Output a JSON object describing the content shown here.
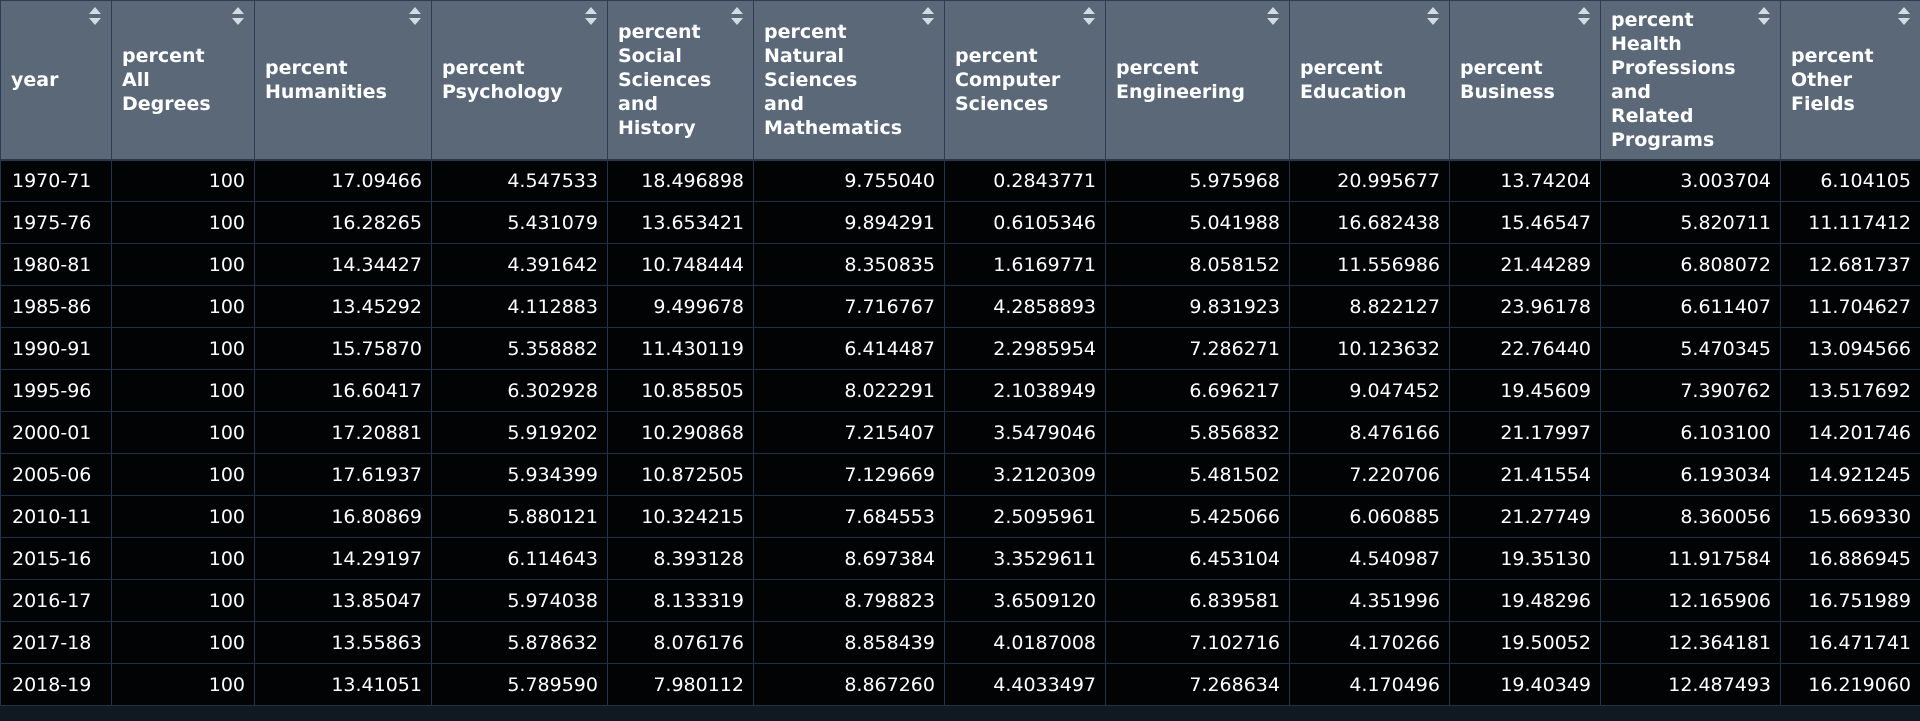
{
  "table": {
    "columns": [
      {
        "key": "year",
        "lines": [
          "year"
        ]
      },
      {
        "key": "all_degrees",
        "lines": [
          "percent",
          "All",
          "Degrees"
        ]
      },
      {
        "key": "humanities",
        "lines": [
          "percent",
          "Humanities"
        ]
      },
      {
        "key": "psychology",
        "lines": [
          "percent",
          "Psychology"
        ]
      },
      {
        "key": "social_sciences_history",
        "lines": [
          "percent",
          "Social",
          "Sciences",
          "and",
          "History"
        ]
      },
      {
        "key": "natural_sciences_math",
        "lines": [
          "percent",
          "Natural",
          "Sciences",
          "and",
          "Mathematics"
        ]
      },
      {
        "key": "computer_sciences",
        "lines": [
          "percent",
          "Computer",
          "Sciences"
        ]
      },
      {
        "key": "engineering",
        "lines": [
          "percent",
          "Engineering"
        ]
      },
      {
        "key": "education",
        "lines": [
          "percent",
          "Education"
        ]
      },
      {
        "key": "business",
        "lines": [
          "percent",
          "Business"
        ]
      },
      {
        "key": "health_professions",
        "lines": [
          "percent",
          "Health",
          "Professions",
          "and",
          "Related",
          "Programs"
        ]
      },
      {
        "key": "other_fields",
        "lines": [
          "percent",
          "Other",
          "Fields"
        ]
      }
    ],
    "rows": [
      [
        "1970-71",
        "100",
        "17.09466",
        "4.547533",
        "18.496898",
        "9.755040",
        "0.2843771",
        "5.975968",
        "20.995677",
        "13.74204",
        "3.003704",
        "6.104105"
      ],
      [
        "1975-76",
        "100",
        "16.28265",
        "5.431079",
        "13.653421",
        "9.894291",
        "0.6105346",
        "5.041988",
        "16.682438",
        "15.46547",
        "5.820711",
        "11.117412"
      ],
      [
        "1980-81",
        "100",
        "14.34427",
        "4.391642",
        "10.748444",
        "8.350835",
        "1.6169771",
        "8.058152",
        "11.556986",
        "21.44289",
        "6.808072",
        "12.681737"
      ],
      [
        "1985-86",
        "100",
        "13.45292",
        "4.112883",
        "9.499678",
        "7.716767",
        "4.2858893",
        "9.831923",
        "8.822127",
        "23.96178",
        "6.611407",
        "11.704627"
      ],
      [
        "1990-91",
        "100",
        "15.75870",
        "5.358882",
        "11.430119",
        "6.414487",
        "2.2985954",
        "7.286271",
        "10.123632",
        "22.76440",
        "5.470345",
        "13.094566"
      ],
      [
        "1995-96",
        "100",
        "16.60417",
        "6.302928",
        "10.858505",
        "8.022291",
        "2.1038949",
        "6.696217",
        "9.047452",
        "19.45609",
        "7.390762",
        "13.517692"
      ],
      [
        "2000-01",
        "100",
        "17.20881",
        "5.919202",
        "10.290868",
        "7.215407",
        "3.5479046",
        "5.856832",
        "8.476166",
        "21.17997",
        "6.103100",
        "14.201746"
      ],
      [
        "2005-06",
        "100",
        "17.61937",
        "5.934399",
        "10.872505",
        "7.129669",
        "3.2120309",
        "5.481502",
        "7.220706",
        "21.41554",
        "6.193034",
        "14.921245"
      ],
      [
        "2010-11",
        "100",
        "16.80869",
        "5.880121",
        "10.324215",
        "7.684553",
        "2.5095961",
        "5.425066",
        "6.060885",
        "21.27749",
        "8.360056",
        "15.669330"
      ],
      [
        "2015-16",
        "100",
        "14.29197",
        "6.114643",
        "8.393128",
        "8.697384",
        "3.3529611",
        "6.453104",
        "4.540987",
        "19.35130",
        "11.917584",
        "16.886945"
      ],
      [
        "2016-17",
        "100",
        "13.85047",
        "5.974038",
        "8.133319",
        "8.798823",
        "3.6509120",
        "6.839581",
        "4.351996",
        "19.48296",
        "12.165906",
        "16.751989"
      ],
      [
        "2017-18",
        "100",
        "13.55863",
        "5.878632",
        "8.076176",
        "8.858439",
        "4.0187008",
        "7.102716",
        "4.170266",
        "19.50052",
        "12.364181",
        "16.471741"
      ],
      [
        "2018-19",
        "100",
        "13.41051",
        "5.789590",
        "7.980112",
        "8.867260",
        "4.4033497",
        "7.268634",
        "4.170496",
        "19.40349",
        "12.487493",
        "16.219060"
      ]
    ]
  }
}
